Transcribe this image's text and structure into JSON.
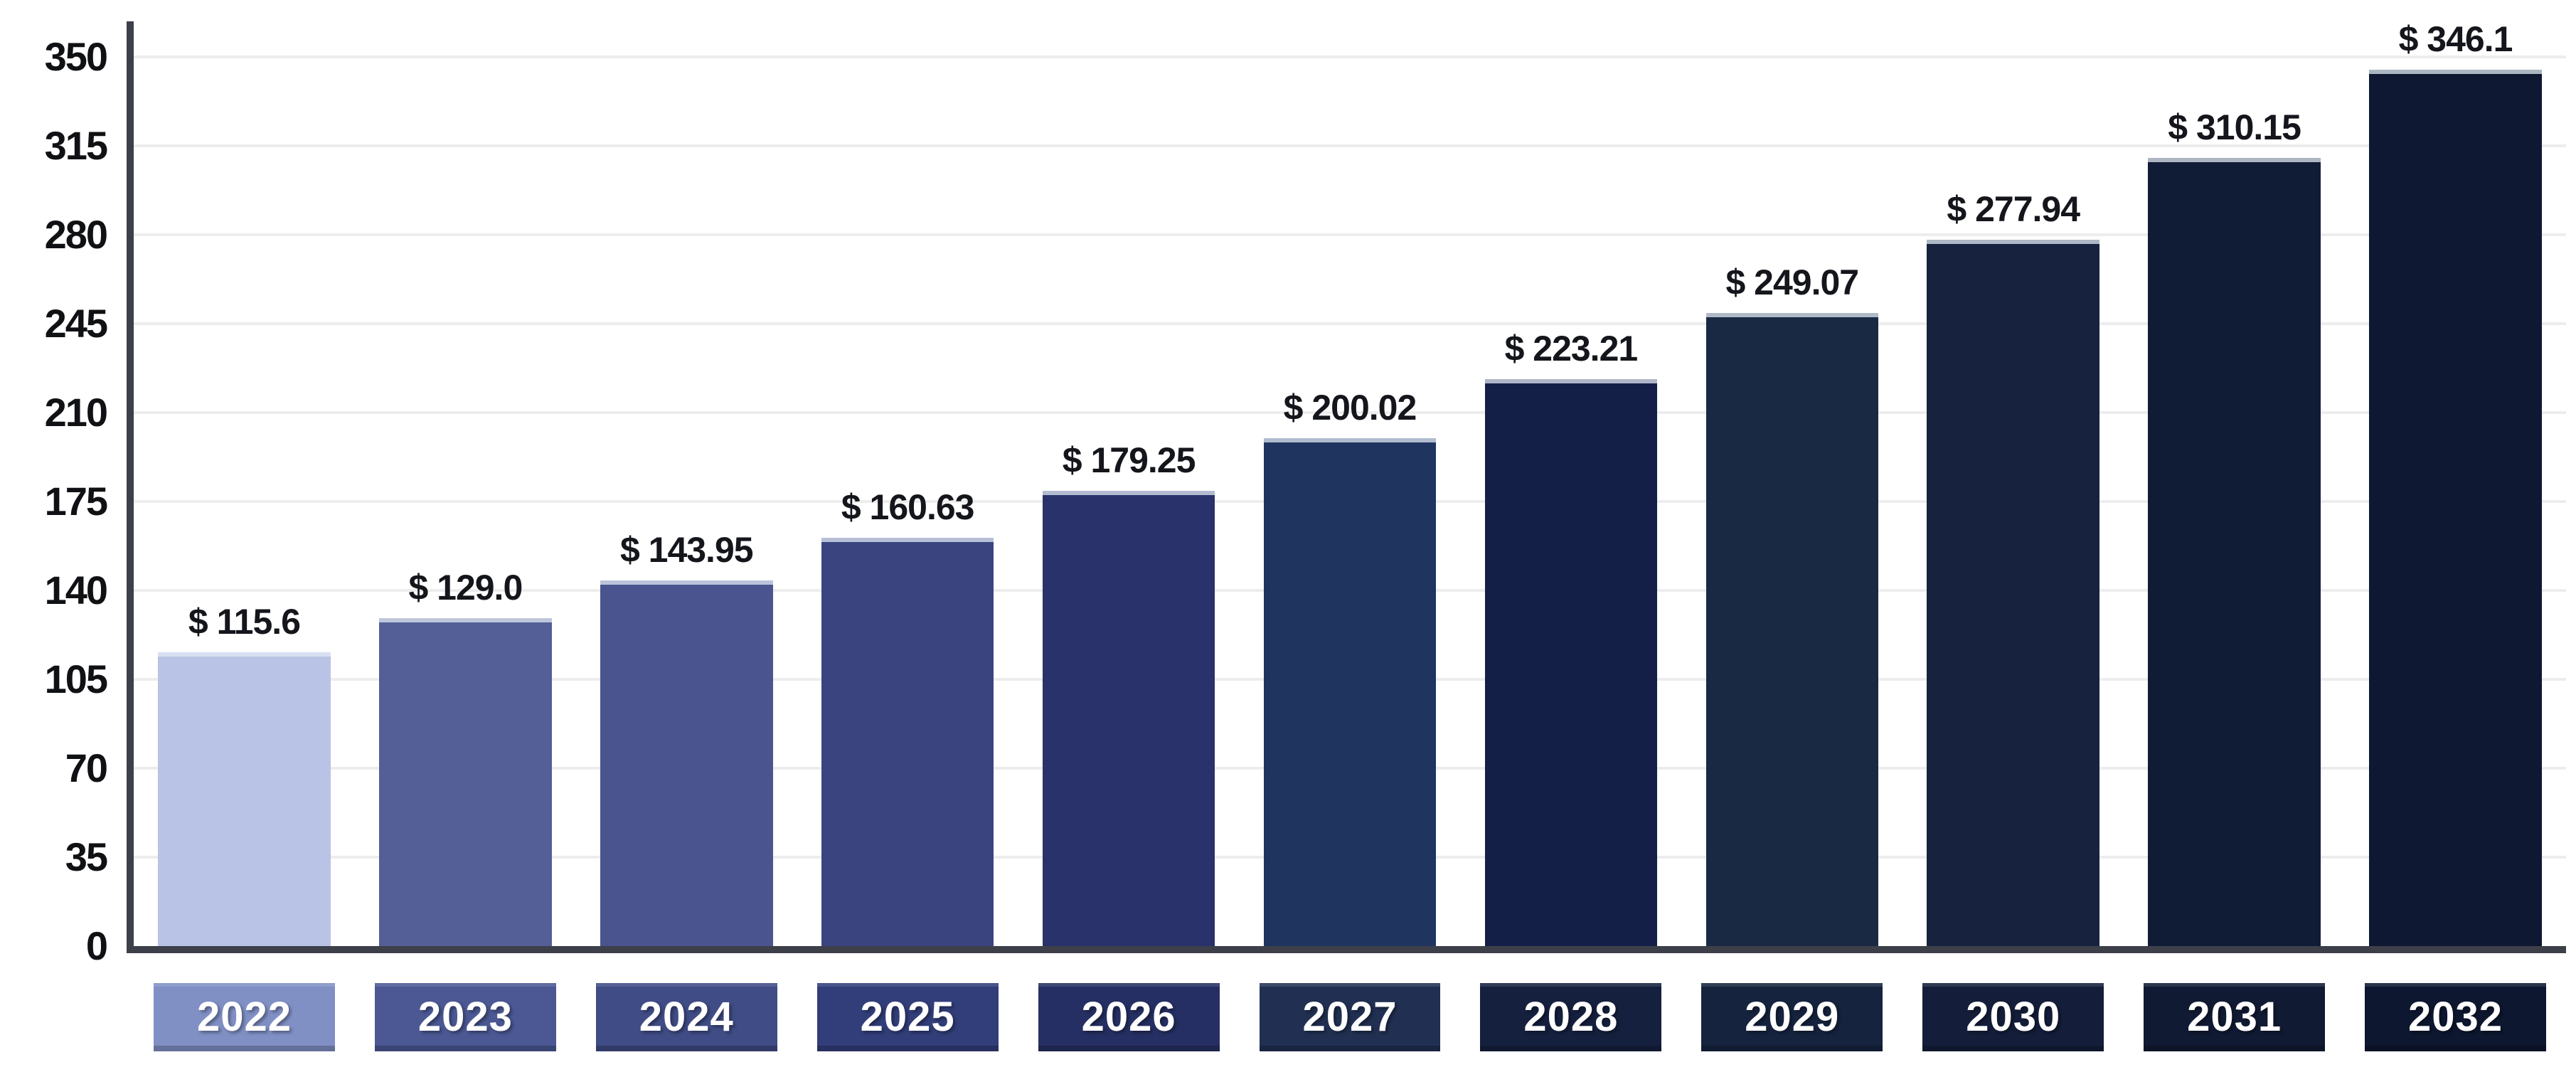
{
  "chart_data": {
    "type": "bar",
    "title": "",
    "xlabel": "",
    "ylabel": "",
    "categories": [
      "2022",
      "2023",
      "2024",
      "2025",
      "2026",
      "2027",
      "2028",
      "2029",
      "2030",
      "2031",
      "2032"
    ],
    "values": [
      115.6,
      129.0,
      143.95,
      160.63,
      179.25,
      200.02,
      223.21,
      249.07,
      277.94,
      310.15,
      346.1
    ],
    "value_labels": [
      "$ 115.6",
      "$ 129.0",
      "$ 143.95",
      "$ 160.63",
      "$ 179.25",
      "$ 200.02",
      "$ 223.21",
      "$ 249.07",
      "$ 277.94",
      "$ 310.15",
      "$ 346.1"
    ],
    "currency_prefix": "$",
    "ylim": [
      0,
      350
    ],
    "yticks": [
      0,
      35,
      70,
      105,
      140,
      175,
      210,
      245,
      280,
      315,
      350
    ],
    "ytick_labels": [
      "0",
      "35",
      "70",
      "105",
      "140",
      "175",
      "210",
      "245",
      "280",
      "315",
      "350"
    ],
    "grid": "horizontal",
    "legend": "none",
    "colors": {
      "bar_colors": [
        "#b9c3e5",
        "#535f96",
        "#4a548e",
        "#3a4580",
        "#29326b",
        "#1f3560",
        "#141f48",
        "#192843",
        "#16223e",
        "#101b36",
        "#0e1832"
      ],
      "badge_colors": [
        "#8090c5",
        "#4b5894",
        "#404c86",
        "#323e7a",
        "#262f63",
        "#213052",
        "#15203f",
        "#16233f",
        "#141e3a",
        "#111a33",
        "#0e1730"
      ],
      "axis_color": "#3d4049",
      "gridline_color": "#ededed",
      "tick_text_color": "#101114",
      "value_text_color": "#14161c",
      "badge_text_color": "#ffffff",
      "background": "#ffffff"
    }
  }
}
